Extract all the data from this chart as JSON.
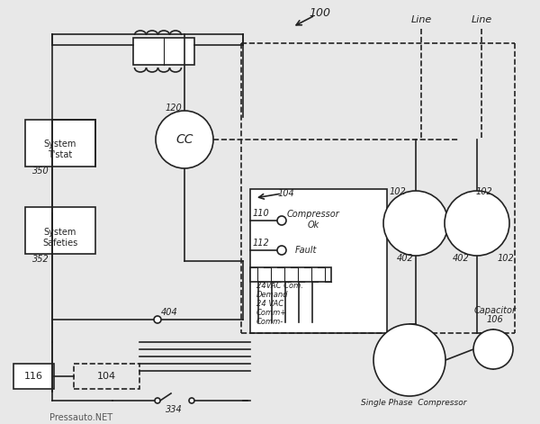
{
  "bg_color": "#e8e8e8",
  "line_color": "#222222",
  "watermark": "Pressauto.NET",
  "labels": {
    "system_tstat": [
      "System",
      "T'stat"
    ],
    "system_safeties": [
      "System",
      "Safeties"
    ],
    "cc": "CC",
    "line1": "Line",
    "line2": "Line",
    "num_100": "100",
    "num_120": "120",
    "num_350": "350",
    "num_352": "352",
    "num_104_label": "104",
    "num_110": "110",
    "num_112": "112",
    "num_102a": "102",
    "num_102b": "102",
    "num_402a": "402",
    "num_402b": "402",
    "num_402c": "402",
    "num_404": "404",
    "num_106": "106",
    "num_116": "116",
    "num_104b": "104",
    "num_334": "334",
    "compressor_ok": [
      "Compressor",
      "Ok"
    ],
    "fault": "Fault",
    "capacitor": "Capacitor",
    "single_phase": "Single Phase  Compressor",
    "wires": [
      "24VAC Com.",
      "Demand",
      "24 VAC",
      "Comm+",
      "Comm-"
    ]
  }
}
